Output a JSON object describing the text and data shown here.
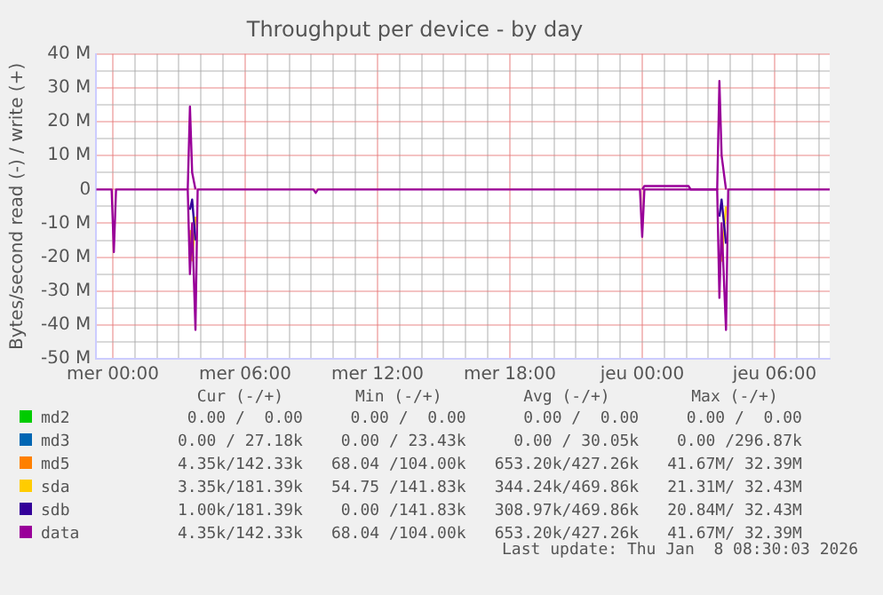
{
  "chart_data": {
    "type": "line",
    "title": "Throughput per device - by day",
    "ylabel": "Bytes/second read (-) / write (+)",
    "x": [
      "2026-01-06T23:15",
      "2026-01-06T23:57",
      "2026-01-07T00:03",
      "2026-01-07T00:09",
      "2026-01-07T03:24",
      "2026-01-07T03:30",
      "2026-01-07T03:36",
      "2026-01-07T03:45",
      "2026-01-07T03:51",
      "2026-01-07T09:06",
      "2026-01-07T09:12",
      "2026-01-07T09:18",
      "2026-01-07T23:54",
      "2026-01-08T00:00",
      "2026-01-08T00:06",
      "2026-01-08T02:06",
      "2026-01-08T02:12",
      "2026-01-08T03:24",
      "2026-01-08T03:30",
      "2026-01-08T03:36",
      "2026-01-08T03:48",
      "2026-01-08T03:54",
      "2026-01-08T08:30"
    ],
    "xlim": [
      "2026-01-06T23:15",
      "2026-01-08T08:30"
    ],
    "xticks": [
      {
        "value": "2026-01-07T00:00",
        "label": "mer 00:00"
      },
      {
        "value": "2026-01-07T01:00",
        "label": null
      },
      {
        "value": "2026-01-07T02:00",
        "label": null
      },
      {
        "value": "2026-01-07T03:00",
        "label": null
      },
      {
        "value": "2026-01-07T04:00",
        "label": null
      },
      {
        "value": "2026-01-07T05:00",
        "label": null
      },
      {
        "value": "2026-01-07T06:00",
        "label": "mer 06:00"
      },
      {
        "value": "2026-01-07T07:00",
        "label": null
      },
      {
        "value": "2026-01-07T08:00",
        "label": null
      },
      {
        "value": "2026-01-07T09:00",
        "label": null
      },
      {
        "value": "2026-01-07T10:00",
        "label": null
      },
      {
        "value": "2026-01-07T11:00",
        "label": null
      },
      {
        "value": "2026-01-07T12:00",
        "label": "mer 12:00"
      },
      {
        "value": "2026-01-07T13:00",
        "label": null
      },
      {
        "value": "2026-01-07T14:00",
        "label": null
      },
      {
        "value": "2026-01-07T15:00",
        "label": null
      },
      {
        "value": "2026-01-07T16:00",
        "label": null
      },
      {
        "value": "2026-01-07T17:00",
        "label": null
      },
      {
        "value": "2026-01-07T18:00",
        "label": "mer 18:00"
      },
      {
        "value": "2026-01-07T19:00",
        "label": null
      },
      {
        "value": "2026-01-07T20:00",
        "label": null
      },
      {
        "value": "2026-01-07T21:00",
        "label": null
      },
      {
        "value": "2026-01-07T22:00",
        "label": null
      },
      {
        "value": "2026-01-07T23:00",
        "label": null
      },
      {
        "value": "2026-01-08T00:00",
        "label": "jeu 00:00"
      },
      {
        "value": "2026-01-08T01:00",
        "label": null
      },
      {
        "value": "2026-01-08T02:00",
        "label": null
      },
      {
        "value": "2026-01-08T03:00",
        "label": null
      },
      {
        "value": "2026-01-08T04:00",
        "label": null
      },
      {
        "value": "2026-01-08T05:00",
        "label": null
      },
      {
        "value": "2026-01-08T06:00",
        "label": "jeu 06:00"
      },
      {
        "value": "2026-01-08T07:00",
        "label": null
      },
      {
        "value": "2026-01-08T08:00",
        "label": null
      }
    ],
    "ylim": [
      -50,
      40
    ],
    "yticks": [
      {
        "value": -50,
        "label": "-50 M"
      },
      {
        "value": -45,
        "label": null
      },
      {
        "value": -40,
        "label": "-40 M"
      },
      {
        "value": -35,
        "label": null
      },
      {
        "value": -30,
        "label": "-30 M"
      },
      {
        "value": -25,
        "label": null
      },
      {
        "value": -20,
        "label": "-20 M"
      },
      {
        "value": -15,
        "label": null
      },
      {
        "value": -10,
        "label": "-10 M"
      },
      {
        "value": -5,
        "label": null
      },
      {
        "value": 0,
        "label": "0"
      },
      {
        "value": 5,
        "label": null
      },
      {
        "value": 10,
        "label": "10 M"
      },
      {
        "value": 15,
        "label": null
      },
      {
        "value": 20,
        "label": "20 M"
      },
      {
        "value": 25,
        "label": null
      },
      {
        "value": 30,
        "label": "30 M"
      },
      {
        "value": 35,
        "label": null
      },
      {
        "value": 40,
        "label": "40 M"
      }
    ],
    "grid": true,
    "legend": "bottom",
    "marker": "none",
    "line_style": "solid",
    "series": [
      {
        "name": "md2",
        "color": "#00cc00",
        "values": [
          null,
          null,
          null,
          null,
          null,
          null,
          null,
          null,
          null,
          null,
          null,
          null,
          null,
          null,
          null,
          null,
          null,
          null,
          null,
          null,
          null,
          null,
          null
        ]
      },
      {
        "name": "md3",
        "color": "#0066b3",
        "values": [
          null,
          null,
          null,
          null,
          null,
          null,
          null,
          null,
          null,
          null,
          null,
          null,
          null,
          null,
          null,
          null,
          null,
          null,
          null,
          null,
          null,
          null,
          null
        ]
      },
      {
        "name": "md5",
        "color": "#ff8000",
        "values": [
          null,
          null,
          null,
          null,
          null,
          null,
          null,
          null,
          null,
          null,
          null,
          null,
          null,
          null,
          null,
          null,
          null,
          null,
          null,
          null,
          null,
          null,
          null
        ]
      },
      {
        "name": "sda",
        "color": "#ffcc00",
        "x": [
          "2026-01-07T03:30",
          "2026-01-07T03:36",
          "2026-01-07T03:45",
          "2026-01-07T12:00",
          "2026-01-08T03:30",
          "2026-01-08T03:36",
          "2026-01-08T03:48"
        ],
        "values": [
          -12,
          -21,
          -8,
          null,
          -20,
          -21,
          -5
        ]
      },
      {
        "name": "sdb",
        "color": "#330099",
        "x": [
          "2026-01-07T03:30",
          "2026-01-07T03:36",
          "2026-01-07T03:45",
          "2026-01-07T12:00",
          "2026-01-08T03:30",
          "2026-01-08T03:36",
          "2026-01-08T03:48"
        ],
        "values": [
          -6,
          -3,
          -15,
          null,
          -8,
          -3,
          -16
        ]
      },
      {
        "name": "data",
        "color": "#990099",
        "values": [
          0,
          0,
          -18.5,
          0,
          0,
          -25,
          -10,
          -41.5,
          0,
          0,
          -1,
          0,
          0,
          -14,
          0,
          0,
          0,
          0,
          -32,
          -10,
          -41.5,
          0,
          0
        ]
      },
      {
        "color": "#990099",
        "values": [
          null,
          null,
          null,
          null,
          0,
          24.5,
          5,
          0,
          null,
          null,
          null,
          null,
          null,
          0,
          1,
          1,
          0,
          0,
          32,
          10,
          0,
          null,
          null
        ]
      }
    ],
    "annotations": [
      "Cur (-/+)",
      "Min (-/+)",
      "Avg (-/+)",
      "Max (-/+)",
      "0.00 /  0.00",
      "0.00 /  0.00",
      "0.00 /  0.00",
      "0.00 /  0.00",
      "0.00 / 27.18k",
      "0.00 / 23.43k",
      "0.00 / 30.05k",
      "0.00 /296.87k",
      "4.35k/142.33k",
      "68.04 /104.00k",
      "653.20k/427.26k",
      "41.67M/ 32.39M",
      "3.35k/181.39k",
      "54.75 /141.83k",
      "344.24k/469.86k",
      "21.31M/ 32.43M",
      "1.00k/181.39k",
      "0.00 /141.83k",
      "308.97k/469.86k",
      "20.84M/ 32.43M",
      "4.35k/142.33k",
      "68.04 /104.00k",
      "653.20k/427.26k",
      "41.67M/ 32.39M",
      "Last update: Thu Jan  8 08:30:03 2026"
    ]
  }
}
